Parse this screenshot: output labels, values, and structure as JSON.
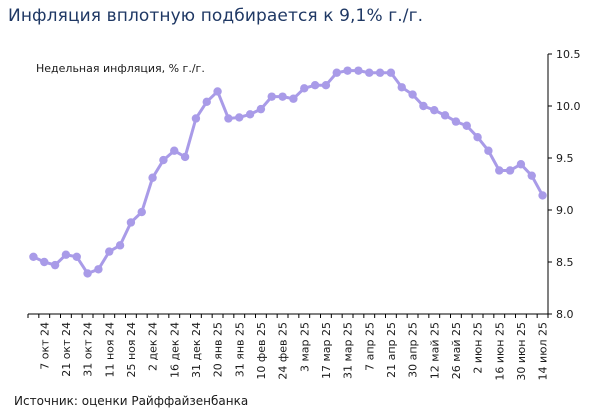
{
  "title": "Инфляция вплотную подбирается к 9,1% г./г.",
  "source": "Источник: оценки Райффайзенбанка",
  "colors": {
    "title": "#1F3864",
    "series": "#A99BE8",
    "axis": "#000000",
    "text": "#1a1a1a"
  },
  "chart_data": {
    "type": "line",
    "series": [
      {
        "name": "Недельная инфляция, % г./г.",
        "values": [
          8.55,
          8.5,
          8.47,
          8.57,
          8.55,
          8.39,
          8.43,
          8.6,
          8.66,
          8.88,
          8.98,
          9.31,
          9.48,
          9.57,
          9.51,
          9.88,
          10.04,
          10.14,
          9.88,
          9.89,
          9.92,
          9.97,
          10.09,
          10.09,
          10.07,
          10.17,
          10.2,
          10.2,
          10.32,
          10.34,
          10.34,
          10.32,
          10.32,
          10.32,
          10.18,
          10.11,
          10.0,
          9.96,
          9.91,
          9.85,
          9.81,
          9.7,
          9.57,
          9.38,
          9.38,
          9.44,
          9.33,
          9.14
        ]
      }
    ],
    "x_tick_labels": [
      "7 окт 24",
      "21 окт 24",
      "31 окт 24",
      "11 ноя 24",
      "25 ноя 24",
      "2 дек 24",
      "16 дек 24",
      "31 дек 24",
      "20 янв 25",
      "31 янв 25",
      "10 фев 25",
      "24 фев 25",
      "3 мар 25",
      "17 мар 25",
      "31 мар 25",
      "7 апр 25",
      "21 апр 25",
      "30 апр 25",
      "12 май 25",
      "26 май 25",
      "2 июн 25",
      "16 июн 25",
      "30 июн 25",
      "14 июл 25"
    ],
    "y_tick_labels": [
      "8.0",
      "8.5",
      "9.0",
      "9.5",
      "10.0",
      "10.5"
    ],
    "ylim": [
      8.0,
      10.5
    ],
    "y_axis_side": "right",
    "grid": false,
    "legend": "top-left"
  }
}
